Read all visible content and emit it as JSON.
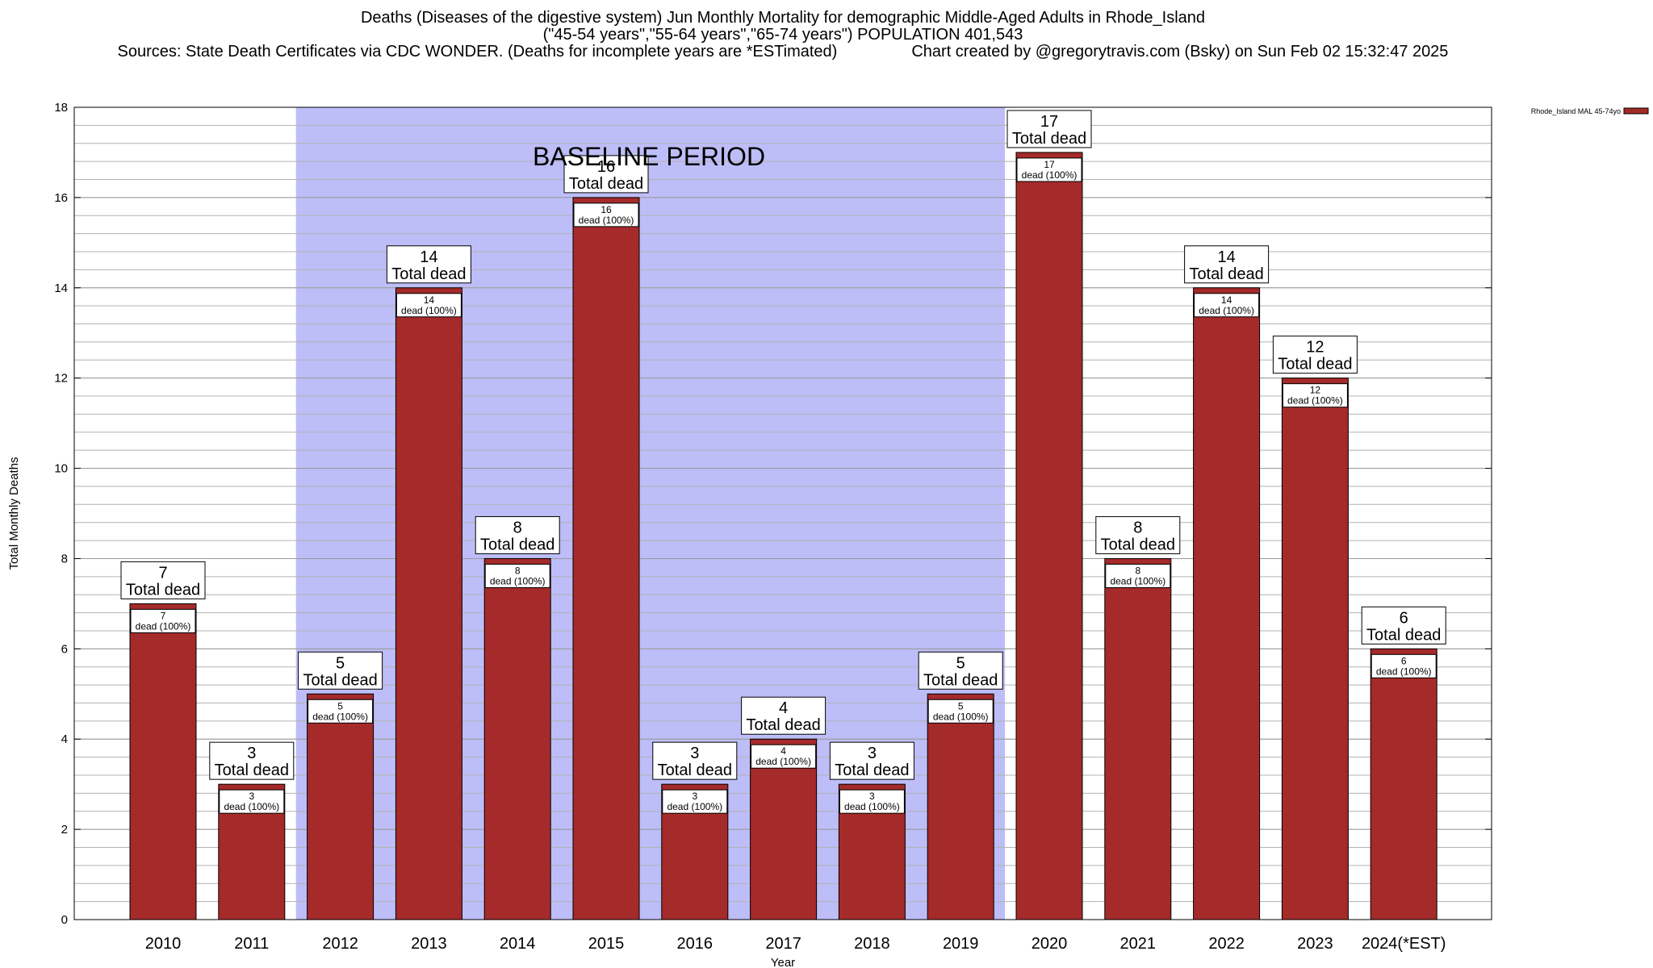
{
  "header": {
    "title_line1": "Deaths (Diseases of the digestive system) Jun Monthly Mortality for demographic Middle-Aged Adults in Rhode_Island",
    "title_line2": "(\"45-54 years\",\"55-64 years\",\"65-74 years\") POPULATION 401,543",
    "sources": "Sources: State Death Certificates via CDC WONDER. (Deaths for incomplete years are *ESTimated)",
    "credit": "Chart created by @gregorytravis.com (Bsky) on Sun Feb 02 15:32:47 2025"
  },
  "chart_data": {
    "type": "bar",
    "xlabel": "Year",
    "ylabel": "Total Monthly Deaths",
    "ylim": [
      0,
      18
    ],
    "yticks": [
      0,
      2,
      4,
      6,
      8,
      10,
      12,
      14,
      16,
      18
    ],
    "minor_grid_step": 0.4,
    "grid": true,
    "categories": [
      "2010",
      "2011",
      "2012",
      "2013",
      "2014",
      "2015",
      "2016",
      "2017",
      "2018",
      "2019",
      "2020",
      "2021",
      "2022",
      "2023",
      "2024(*EST)"
    ],
    "series": [
      {
        "name": "Rhode_Island MAL 45-74yo",
        "color": "#a52a2a",
        "values": [
          7,
          3,
          5,
          14,
          8,
          16,
          3,
          4,
          3,
          5,
          17,
          8,
          14,
          12,
          6
        ]
      }
    ],
    "total_label": "Total dead",
    "inner_label": "dead (100%)",
    "baseline": {
      "label": "BASELINE PERIOD",
      "start": "2012",
      "end": "2019",
      "color": "#bdbdf8"
    },
    "legend_position": "top-right"
  }
}
